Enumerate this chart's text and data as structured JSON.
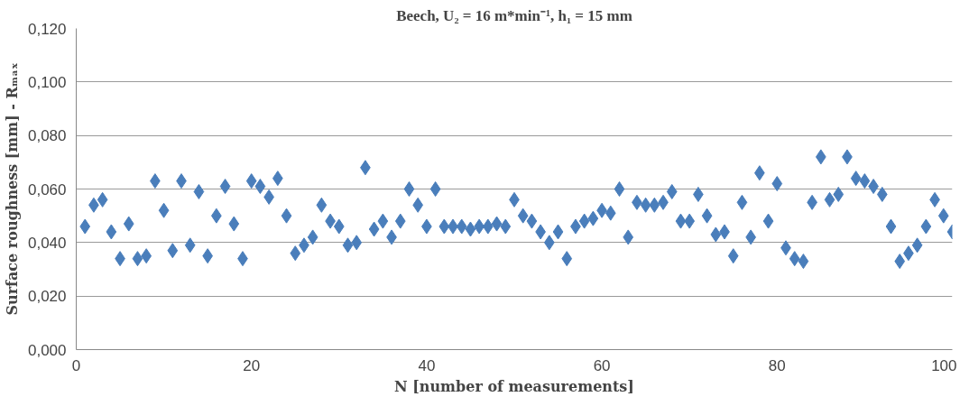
{
  "chart_data": {
    "type": "scatter",
    "title": "Beech, U₂ = 16 m*min⁻¹, h₁ = 15 mm",
    "xlabel": "N [number of measurements]",
    "ylabel": "Surface roughness [mm] - Rₘₐₓ",
    "xlim": [
      0,
      100
    ],
    "xticks": [
      0,
      20,
      40,
      60,
      80,
      100
    ],
    "ylim": [
      0,
      0.12
    ],
    "yticks": [
      {
        "value": 0,
        "label": "0,000"
      },
      {
        "value": 0.02,
        "label": "0,020"
      },
      {
        "value": 0.04,
        "label": "0,040"
      },
      {
        "value": 0.06,
        "label": "0,060"
      },
      {
        "value": 0.08,
        "label": "0,080"
      },
      {
        "value": 0.1,
        "label": "0,100"
      },
      {
        "value": 0.12,
        "label": "0,120"
      }
    ],
    "grid": "y",
    "marker": "diamond",
    "x": [
      1,
      2,
      3,
      4,
      5,
      6,
      7,
      8,
      9,
      10,
      11,
      12,
      13,
      14,
      15,
      16,
      17,
      18,
      19,
      20,
      21,
      22,
      23,
      24,
      25,
      26,
      27,
      28,
      29,
      30,
      31,
      32,
      33,
      34,
      35,
      36,
      37,
      38,
      39,
      40,
      41,
      42,
      43,
      44,
      45,
      46,
      47,
      48,
      49,
      50,
      51,
      52,
      53,
      54,
      55,
      56,
      57,
      58,
      59,
      60,
      61,
      62,
      63,
      64,
      65,
      66,
      67,
      68,
      69,
      70,
      71,
      72,
      73,
      74,
      75,
      76,
      77,
      78,
      79,
      80,
      81,
      82,
      83,
      84,
      85,
      86,
      87,
      88,
      89,
      90,
      91,
      92,
      93,
      94,
      95,
      96,
      97,
      98,
      99,
      100
    ],
    "series": [
      {
        "color": "#4a7ebb",
        "values": [
          0.046,
          0.054,
          0.056,
          0.044,
          0.034,
          0.047,
          0.034,
          0.035,
          0.063,
          0.052,
          0.037,
          0.063,
          0.039,
          0.059,
          0.035,
          0.05,
          0.061,
          0.047,
          0.034,
          0.063,
          0.061,
          0.057,
          0.064,
          0.05,
          0.036,
          0.039,
          0.042,
          0.054,
          0.048,
          0.046,
          0.039,
          0.04,
          0.068,
          0.045,
          0.048,
          0.042,
          0.048,
          0.06,
          0.054,
          0.046,
          0.06,
          0.046,
          0.046,
          0.046,
          0.045,
          0.046,
          0.046,
          0.047,
          0.046,
          0.056,
          0.05,
          0.048,
          0.044,
          0.04,
          0.044,
          0.034,
          0.046,
          0.048,
          0.049,
          0.052,
          0.051,
          0.06,
          0.042,
          0.055,
          0.054,
          0.054,
          0.055,
          0.059,
          0.048,
          0.048,
          0.058,
          0.05,
          0.043,
          0.044,
          0.035,
          0.055,
          0.042,
          0.066,
          0.048,
          0.062,
          0.038,
          0.034,
          0.033,
          0.055,
          0.072,
          0.056,
          0.058,
          0.072,
          0.064,
          0.063,
          0.061,
          0.058,
          0.046,
          0.033,
          0.036,
          0.039,
          0.046,
          0.056,
          0.05,
          0.044
        ]
      }
    ]
  }
}
